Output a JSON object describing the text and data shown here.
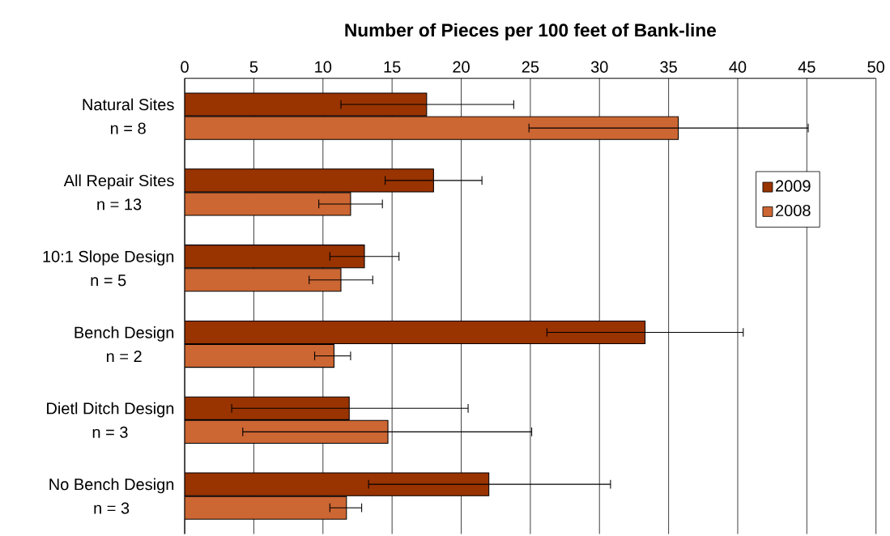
{
  "chart_data": {
    "type": "bar",
    "orientation": "horizontal",
    "title": "Number of Pieces per 100 feet of Bank-line",
    "categories": [
      "Natural Sites\nn = 8",
      "All Repair Sites\nn = 13",
      "10:1 Slope Design\nn = 5",
      "Bench Design\nn = 2",
      "Dietl Ditch Design\nn = 3",
      "No Bench Design\nn = 3"
    ],
    "series": [
      {
        "name": "2009",
        "color": "#993300",
        "values": [
          17.5,
          18.0,
          13.0,
          33.3,
          11.9,
          22.0
        ],
        "errors": [
          [
            11.3,
            23.8
          ],
          [
            14.5,
            21.5
          ],
          [
            10.5,
            15.5
          ],
          [
            26.2,
            40.4
          ],
          [
            3.4,
            20.5
          ],
          [
            13.3,
            30.8
          ]
        ]
      },
      {
        "name": "2008",
        "color": "#cc6633",
        "values": [
          35.7,
          12.0,
          11.3,
          10.8,
          14.7,
          11.7
        ],
        "errors": [
          [
            24.9,
            45.1
          ],
          [
            9.7,
            14.3
          ],
          [
            9.0,
            13.6
          ],
          [
            9.4,
            12.0
          ],
          [
            4.2,
            25.1
          ],
          [
            10.5,
            12.8
          ]
        ]
      }
    ],
    "xlim": [
      0,
      50
    ],
    "xticks": [
      0,
      5,
      10,
      15,
      20,
      25,
      30,
      35,
      40,
      45,
      50
    ],
    "grid": "x",
    "legend": "top right"
  }
}
